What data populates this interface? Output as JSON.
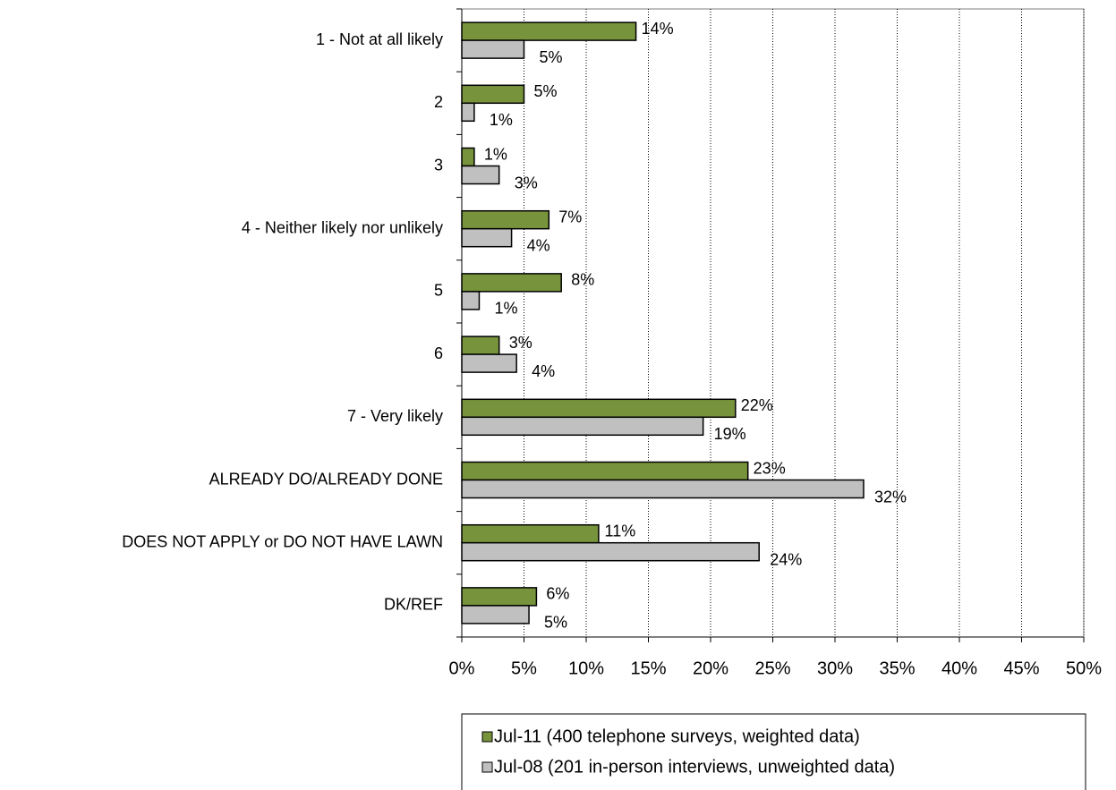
{
  "chart_data": {
    "type": "bar",
    "orientation": "horizontal",
    "categories": [
      "1 - Not at all likely",
      "2",
      "3",
      "4 - Neither likely nor unlikely",
      "5",
      "6",
      "7 - Very likely",
      "ALREADY DO/ALREADY DONE",
      "DOES NOT APPLY or DO NOT HAVE LAWN",
      "DK/REF"
    ],
    "series": [
      {
        "name": "Jul-11 (400 telephone surveys, weighted data)",
        "color": "#77933c",
        "values": [
          14,
          5,
          1,
          7,
          8,
          3,
          22,
          23,
          11,
          6
        ],
        "value_labels": [
          "14%",
          "5%",
          "1%",
          "7%",
          "8%",
          "3%",
          "22%",
          "23%",
          "11%",
          "6%"
        ]
      },
      {
        "name": "Jul-08 (201 in-person interviews, unweighted data)",
        "color": "#c0c0c0",
        "values": [
          5,
          1,
          3,
          4,
          1.4,
          4.4,
          19.4,
          32.3,
          23.9,
          5.4
        ],
        "value_labels": [
          "5%",
          "1%",
          "3%",
          "4%",
          "1%",
          "4%",
          "19%",
          "32%",
          "24%",
          "5%"
        ]
      }
    ],
    "xlim": [
      0,
      50
    ],
    "xticks": [
      {
        "value": 0,
        "label": "0%"
      },
      {
        "value": 5,
        "label": "5%"
      },
      {
        "value": 10,
        "label": "10%"
      },
      {
        "value": 15,
        "label": "15%"
      },
      {
        "value": 20,
        "label": "20%"
      },
      {
        "value": 25,
        "label": "25%"
      },
      {
        "value": 30,
        "label": "30%"
      },
      {
        "value": 35,
        "label": "35%"
      },
      {
        "value": 40,
        "label": "40%"
      },
      {
        "value": 45,
        "label": "45%"
      },
      {
        "value": 50,
        "label": "50%"
      }
    ],
    "grid": true,
    "legend": "bottom"
  }
}
